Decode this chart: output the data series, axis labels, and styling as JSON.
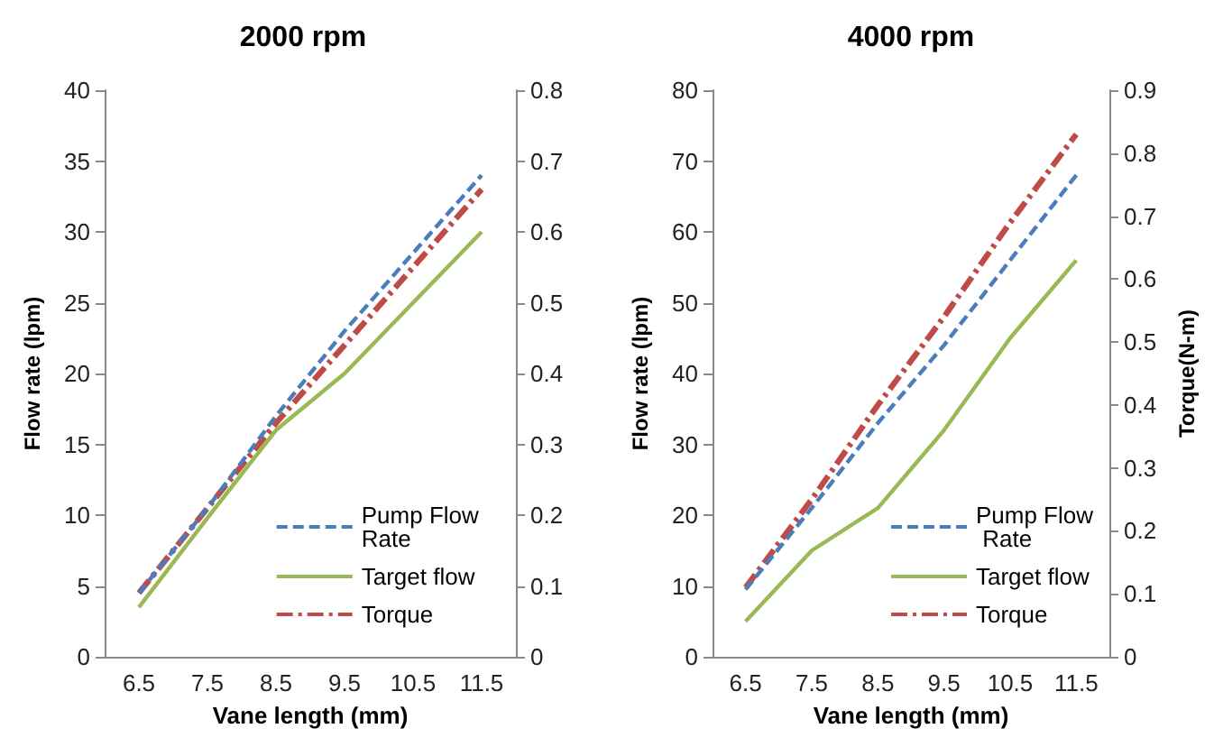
{
  "chart_data": [
    {
      "type": "line",
      "title": "2000 rpm",
      "xlabel": "Vane length (mm)",
      "ylabel": "Flow rate (lpm)",
      "categories": [
        "6.5",
        "7.5",
        "8.5",
        "9.5",
        "10.5",
        "11.5"
      ],
      "ylim": [
        0,
        40
      ],
      "yticks": [
        0,
        5,
        10,
        15,
        20,
        25,
        30,
        35,
        40
      ],
      "y2lim": [
        0,
        0.8
      ],
      "y2ticks": [
        0,
        0.1,
        0.2,
        0.3,
        0.4,
        0.5,
        0.6,
        0.7,
        0.8
      ],
      "grid": false,
      "legend": "bottom right",
      "marker": "none",
      "series": [
        {
          "name": "Pump Flow Rate",
          "color": "#4a7ebb",
          "line_style": "dashed",
          "values": [
            4.5,
            10.5,
            17,
            23,
            28.5,
            34
          ]
        },
        {
          "name": "Target flow",
          "color": "#98b954",
          "line_style": "solid",
          "values": [
            3.5,
            9.8,
            16,
            20,
            25,
            30
          ]
        },
        {
          "name": "Torque",
          "color": "#be4b48",
          "line_style": "dashdot",
          "axis": "y2",
          "values": [
            0.09,
            0.21,
            0.33,
            0.44,
            0.55,
            0.66
          ]
        }
      ]
    },
    {
      "type": "line",
      "title": "4000 rpm",
      "xlabel": "Vane length (mm)",
      "ylabel": "Flow rate (lpm)",
      "y2label": "Torque(N-m)",
      "categories": [
        "6.5",
        "7.5",
        "8.5",
        "9.5",
        "10.5",
        "11.5"
      ],
      "ylim": [
        0,
        80
      ],
      "yticks": [
        0,
        10,
        20,
        30,
        40,
        50,
        60,
        70,
        80
      ],
      "y2lim": [
        0,
        0.9
      ],
      "y2ticks": [
        0,
        0.1,
        0.2,
        0.3,
        0.4,
        0.5,
        0.6,
        0.7,
        0.8,
        0.9
      ],
      "grid": false,
      "legend": "bottom right",
      "marker": "none",
      "series": [
        {
          "name": "Pump Flow Rate",
          "color": "#4a7ebb",
          "line_style": "dashed",
          "values": [
            9.5,
            21,
            33,
            44,
            56,
            68
          ]
        },
        {
          "name": "Target flow",
          "color": "#98b954",
          "line_style": "solid",
          "values": [
            5,
            15,
            21,
            32,
            45,
            56
          ]
        },
        {
          "name": "Torque",
          "color": "#be4b48",
          "line_style": "dashdot",
          "axis": "y2",
          "values": [
            0.11,
            0.25,
            0.4,
            0.54,
            0.69,
            0.83
          ]
        }
      ]
    }
  ]
}
